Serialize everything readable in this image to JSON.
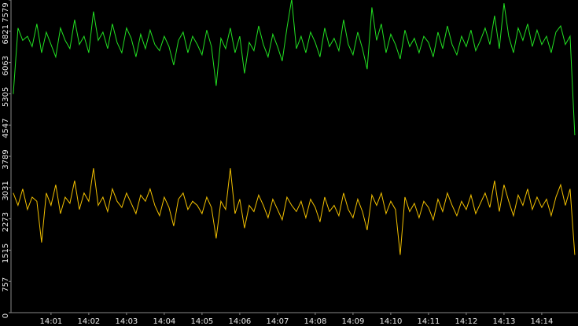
{
  "chart_data": {
    "type": "line",
    "xlim": [
      -0.06,
      14.96
    ],
    "xticks": [
      {
        "value": 1,
        "label": "14:01"
      },
      {
        "value": 2,
        "label": "14:02"
      },
      {
        "value": 3,
        "label": "14:03"
      },
      {
        "value": 4,
        "label": "14:04"
      },
      {
        "value": 5,
        "label": "14:05"
      },
      {
        "value": 6,
        "label": "14:06"
      },
      {
        "value": 7,
        "label": "14:07"
      },
      {
        "value": 8,
        "label": "14:08"
      },
      {
        "value": 9,
        "label": "14:09"
      },
      {
        "value": 10,
        "label": "14:10"
      },
      {
        "value": 11,
        "label": "14:11"
      },
      {
        "value": 12,
        "label": "14:12"
      },
      {
        "value": 13,
        "label": "14:13"
      },
      {
        "value": 14,
        "label": "14:14"
      }
    ],
    "ylim": [
      0,
      7579
    ],
    "yticks": [
      0,
      757,
      1515,
      2273,
      3031,
      3789,
      4547,
      5305,
      6063,
      6821,
      7579
    ],
    "x": [
      0,
      0.125,
      0.25,
      0.375,
      0.5,
      0.625,
      0.75,
      0.875,
      1,
      1.125,
      1.25,
      1.375,
      1.5,
      1.625,
      1.75,
      1.875,
      2,
      2.125,
      2.25,
      2.375,
      2.5,
      2.625,
      2.75,
      2.875,
      3,
      3.125,
      3.25,
      3.375,
      3.5,
      3.625,
      3.75,
      3.875,
      4,
      4.125,
      4.25,
      4.375,
      4.5,
      4.625,
      4.75,
      4.875,
      5,
      5.125,
      5.25,
      5.375,
      5.5,
      5.625,
      5.75,
      5.875,
      6,
      6.125,
      6.25,
      6.375,
      6.5,
      6.625,
      6.75,
      6.875,
      7,
      7.125,
      7.25,
      7.375,
      7.5,
      7.625,
      7.75,
      7.875,
      8,
      8.125,
      8.25,
      8.375,
      8.5,
      8.625,
      8.75,
      8.875,
      9,
      9.125,
      9.25,
      9.375,
      9.5,
      9.625,
      9.75,
      9.875,
      10,
      10.125,
      10.25,
      10.375,
      10.5,
      10.625,
      10.75,
      10.875,
      11,
      11.125,
      11.25,
      11.375,
      11.5,
      11.625,
      11.75,
      11.875,
      12,
      12.125,
      12.25,
      12.375,
      12.5,
      12.625,
      12.75,
      12.875,
      13,
      13.125,
      13.25,
      13.375,
      13.5,
      13.625,
      13.75,
      13.875,
      14,
      14.125,
      14.25,
      14.375,
      14.5,
      14.625,
      14.75,
      14.875
    ],
    "series": [
      {
        "color": "#22e022",
        "values": [
          5300,
          6900,
          6600,
          6700,
          6450,
          7000,
          6300,
          6800,
          6500,
          6200,
          6900,
          6600,
          6400,
          7100,
          6500,
          6700,
          6300,
          7300,
          6600,
          6800,
          6400,
          7000,
          6550,
          6300,
          6900,
          6650,
          6200,
          6750,
          6400,
          6850,
          6500,
          6350,
          6700,
          6450,
          6000,
          6600,
          6800,
          6300,
          6700,
          6500,
          6250,
          6850,
          6450,
          5500,
          6650,
          6400,
          6900,
          6300,
          6700,
          5800,
          6550,
          6350,
          6950,
          6500,
          6200,
          6750,
          6450,
          6100,
          6900,
          7600,
          6400,
          6700,
          6300,
          6800,
          6550,
          6200,
          6900,
          6450,
          6650,
          6350,
          7100,
          6500,
          6250,
          6800,
          6400,
          5900,
          7400,
          6600,
          7000,
          6300,
          6750,
          6500,
          6150,
          6850,
          6450,
          6650,
          6300,
          6700,
          6550,
          6200,
          6800,
          6400,
          6950,
          6500,
          6250,
          6700,
          6450,
          6850,
          6350,
          6600,
          6900,
          6500,
          7200,
          6400,
          7500,
          6700,
          6300,
          6900,
          6600,
          7000,
          6450,
          6850,
          6500,
          6700,
          6300,
          6800,
          6950,
          6500,
          6700,
          4300
        ]
      },
      {
        "color": "#f2c000",
        "values": [
          2900,
          2600,
          3000,
          2500,
          2800,
          2700,
          1700,
          2900,
          2600,
          3100,
          2400,
          2800,
          2650,
          3200,
          2500,
          2900,
          2700,
          3500,
          2600,
          2800,
          2450,
          3000,
          2700,
          2550,
          2900,
          2650,
          2400,
          2850,
          2700,
          3000,
          2600,
          2350,
          2800,
          2550,
          2100,
          2750,
          2900,
          2500,
          2700,
          2600,
          2400,
          2800,
          2550,
          1800,
          2700,
          2500,
          3500,
          2400,
          2750,
          2050,
          2600,
          2450,
          2850,
          2600,
          2300,
          2750,
          2500,
          2250,
          2800,
          2600,
          2450,
          2700,
          2300,
          2750,
          2550,
          2200,
          2800,
          2450,
          2600,
          2350,
          2900,
          2500,
          2300,
          2750,
          2450,
          2000,
          2850,
          2600,
          2900,
          2400,
          2700,
          2500,
          1400,
          2800,
          2450,
          2650,
          2300,
          2700,
          2550,
          2250,
          2750,
          2450,
          2900,
          2600,
          2350,
          2700,
          2500,
          2850,
          2400,
          2650,
          2900,
          2550,
          3200,
          2450,
          3100,
          2700,
          2350,
          2850,
          2600,
          3000,
          2500,
          2800,
          2550,
          2750,
          2350,
          2800,
          3100,
          2600,
          3000,
          1400
        ]
      }
    ]
  }
}
